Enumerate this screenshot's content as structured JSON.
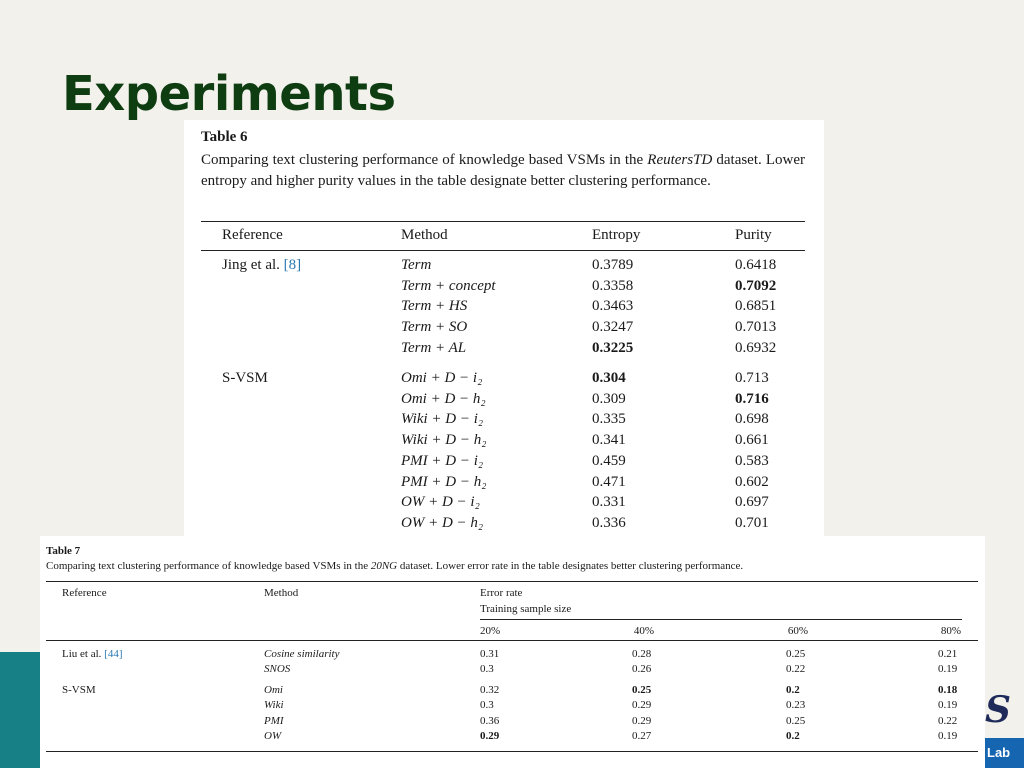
{
  "slide": {
    "title": "Experiments",
    "logo_fragment": "S",
    "lab_label": "Lab"
  },
  "table6": {
    "label": "Table 6",
    "caption_pre": "Comparing text clustering performance of knowledge based VSMs in the ",
    "caption_em": "ReutersTD",
    "caption_post": " dataset. Lower entropy and higher purity values in the table designate better clustering performance.",
    "headers": [
      "Reference",
      "Method",
      "Entropy",
      "Purity"
    ],
    "groups": [
      {
        "reference": "Jing et al. ",
        "ref_link": "[8]",
        "rows": [
          {
            "method": "Term",
            "entropy": "0.3789",
            "purity": "0.6418",
            "entropy_bold": false,
            "purity_bold": false
          },
          {
            "method": "Term + concept",
            "entropy": "0.3358",
            "purity": "0.7092",
            "entropy_bold": false,
            "purity_bold": true
          },
          {
            "method": "Term + HS",
            "entropy": "0.3463",
            "purity": "0.6851",
            "entropy_bold": false,
            "purity_bold": false
          },
          {
            "method": "Term + SO",
            "entropy": "0.3247",
            "purity": "0.7013",
            "entropy_bold": false,
            "purity_bold": false
          },
          {
            "method": "Term + AL",
            "entropy": "0.3225",
            "purity": "0.6932",
            "entropy_bold": true,
            "purity_bold": false
          }
        ]
      },
      {
        "reference": "S-VSM",
        "ref_link": "",
        "rows": [
          {
            "method": "Omi + D − i₂",
            "entropy": "0.304",
            "purity": "0.713",
            "entropy_bold": true,
            "purity_bold": false
          },
          {
            "method": "Omi + D − h₂",
            "entropy": "0.309",
            "purity": "0.716",
            "entropy_bold": false,
            "purity_bold": true
          },
          {
            "method": "Wiki + D − i₂",
            "entropy": "0.335",
            "purity": "0.698",
            "entropy_bold": false,
            "purity_bold": false
          },
          {
            "method": "Wiki + D − h₂",
            "entropy": "0.341",
            "purity": "0.661",
            "entropy_bold": false,
            "purity_bold": false
          },
          {
            "method": "PMI + D − i₂",
            "entropy": "0.459",
            "purity": "0.583",
            "entropy_bold": false,
            "purity_bold": false
          },
          {
            "method": "PMI + D − h₂",
            "entropy": "0.471",
            "purity": "0.602",
            "entropy_bold": false,
            "purity_bold": false
          },
          {
            "method": "OW + D − i₂",
            "entropy": "0.331",
            "purity": "0.697",
            "entropy_bold": false,
            "purity_bold": false
          },
          {
            "method": "OW + D − h₂",
            "entropy": "0.336",
            "purity": "0.701",
            "entropy_bold": false,
            "purity_bold": false
          }
        ]
      }
    ]
  },
  "table7": {
    "label": "Table 7",
    "caption_pre": "Comparing text clustering performance of knowledge based VSMs in the ",
    "caption_em": "20NG",
    "caption_post": " dataset. Lower error rate in the table designates better clustering performance.",
    "headers": {
      "reference": "Reference",
      "method": "Method",
      "error_rate": "Error rate",
      "training_size": "Training sample size"
    },
    "sizes": [
      "20%",
      "40%",
      "60%",
      "80%"
    ],
    "groups": [
      {
        "reference": "Liu et al. ",
        "ref_link": "[44]",
        "rows": [
          {
            "method": "Cosine similarity",
            "values": [
              "0.31",
              "0.28",
              "0.25",
              "0.21"
            ],
            "bold": [
              false,
              false,
              false,
              false
            ]
          },
          {
            "method": "SNOS",
            "values": [
              "0.3",
              "0.26",
              "0.22",
              "0.19"
            ],
            "bold": [
              false,
              false,
              false,
              false
            ]
          }
        ]
      },
      {
        "reference": "S-VSM",
        "ref_link": "",
        "rows": [
          {
            "method": "Omi",
            "values": [
              "0.32",
              "0.25",
              "0.2",
              "0.18"
            ],
            "bold": [
              false,
              true,
              true,
              true
            ]
          },
          {
            "method": "Wiki",
            "values": [
              "0.3",
              "0.29",
              "0.23",
              "0.19"
            ],
            "bold": [
              false,
              false,
              false,
              false
            ]
          },
          {
            "method": "PMI",
            "values": [
              "0.36",
              "0.29",
              "0.25",
              "0.22"
            ],
            "bold": [
              false,
              false,
              false,
              false
            ]
          },
          {
            "method": "OW",
            "values": [
              "0.29",
              "0.27",
              "0.2",
              "0.19"
            ],
            "bold": [
              true,
              false,
              true,
              false
            ]
          }
        ]
      }
    ]
  }
}
